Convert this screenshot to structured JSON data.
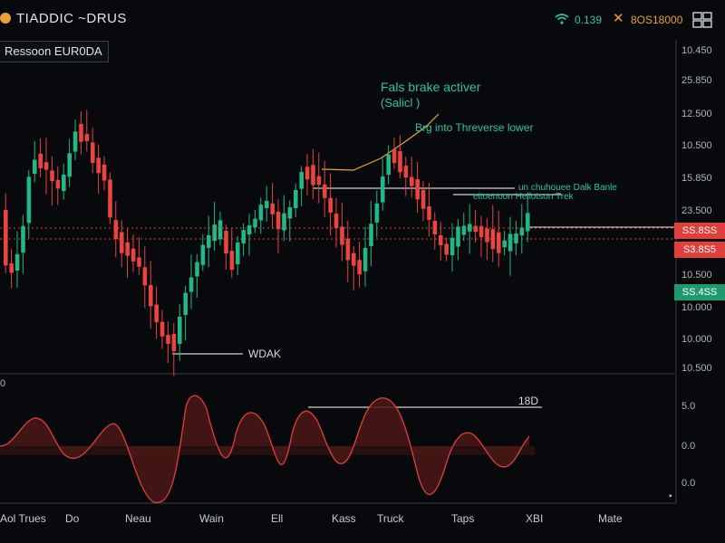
{
  "app": {
    "title": "TIADDIC ~DRUS"
  },
  "status": {
    "signal_value": "0.139",
    "price": "8OS18000"
  },
  "symbol": "Ressoon EUR0DA",
  "price_axis": [
    "10.450",
    "25.850",
    "12.500",
    "10.500",
    "15.850",
    "23.500",
    "10.500",
    "10.000",
    "10.000",
    "10.500"
  ],
  "price_tags": {
    "red1": "SS.8SS",
    "red2": "S3.8S5",
    "green": "SS.4SS"
  },
  "indicator_axis": {
    "left": "0",
    "right": [
      "5.0",
      "0.0",
      "0.0"
    ]
  },
  "annotations": {
    "false_break_title": "Fals brake activer",
    "false_break_sub": "(Salicl )",
    "reverse": "Brg into Threverse lower",
    "breakout_1": "un chuhouee Dalk Banle",
    "breakout_2": "eitoenoon Hellotson Trek",
    "weak": "WDAK",
    "ind_marker": "18D"
  },
  "x_axis": [
    "Aol Trues",
    "Do",
    "Neau",
    "Wain",
    "Ell",
    "Kass",
    "Truck",
    "Taps",
    "XBI",
    "Mate"
  ],
  "colors": {
    "bull": "#22b784",
    "bear": "#e9453d",
    "bg": "#07090c"
  }
}
